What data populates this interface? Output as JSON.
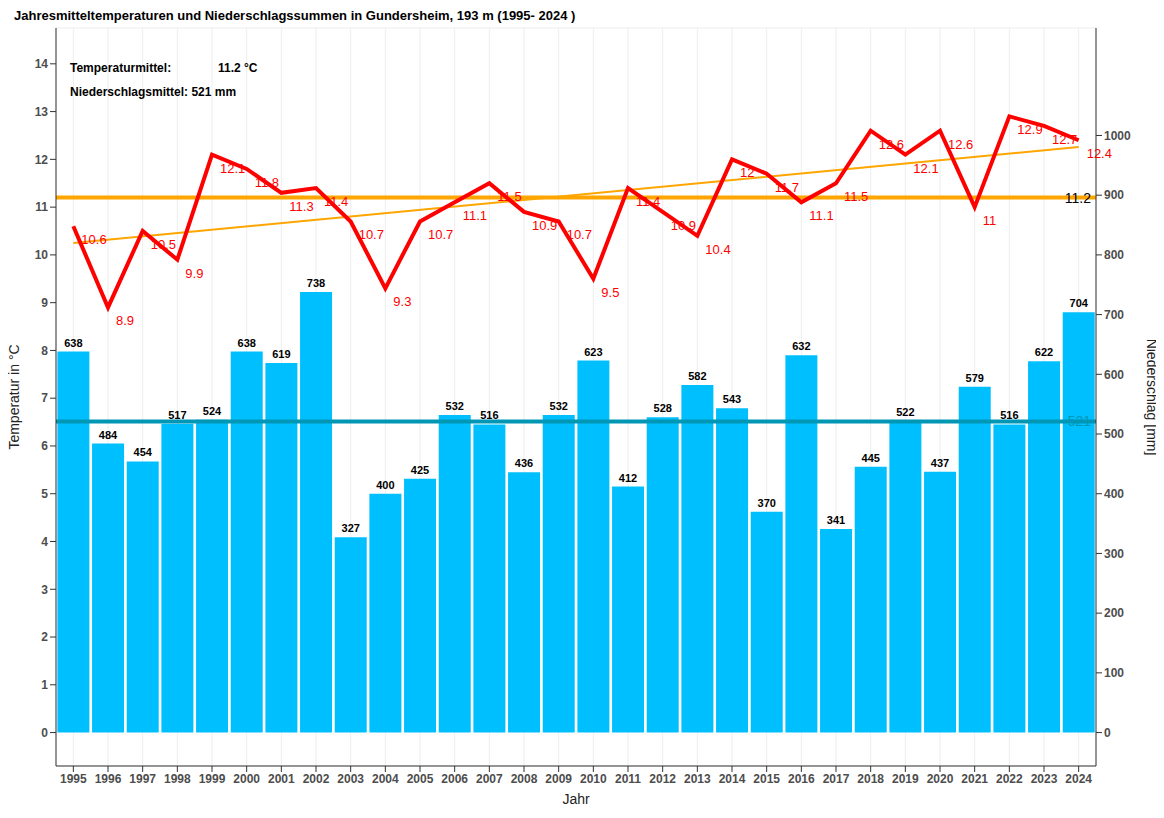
{
  "chart_data": {
    "type": "bar",
    "title": "Jahresmitteltemperaturen und Niederschlagssummen in Gundersheim, 193 m (1995- 2024 )",
    "x_label": "Jahr",
    "y_label": "Temperatur in °C",
    "y2_label": "Niederschlag [mm]",
    "x": [
      1995,
      1996,
      1997,
      1998,
      1999,
      2000,
      2001,
      2002,
      2003,
      2004,
      2005,
      2006,
      2007,
      2008,
      2009,
      2010,
      2011,
      2012,
      2013,
      2014,
      2015,
      2016,
      2017,
      2018,
      2019,
      2020,
      2021,
      2022,
      2023,
      2024
    ],
    "series": [
      {
        "type": "bar",
        "axis": "y2",
        "color": "#00bfff",
        "data_labels": true,
        "values": [
          638,
          484,
          454,
          517,
          524,
          638,
          619,
          738,
          327,
          400,
          425,
          532,
          516,
          436,
          532,
          623,
          412,
          528,
          582,
          543,
          370,
          632,
          341,
          445,
          522,
          437,
          579,
          516,
          622,
          704
        ]
      },
      {
        "type": "line",
        "axis": "y",
        "color": "#ff0000",
        "data_labels": true,
        "values": [
          10.6,
          8.9,
          10.5,
          9.9,
          12.1,
          11.8,
          11.3,
          11.4,
          10.7,
          9.3,
          10.7,
          11.1,
          11.5,
          10.9,
          10.7,
          9.5,
          11.4,
          10.9,
          10.4,
          12,
          11.7,
          11.1,
          11.5,
          12.6,
          12.1,
          12.6,
          11,
          12.9,
          12.7,
          12.4
        ]
      }
    ],
    "mean_lines": [
      {
        "axis": "y",
        "value": 11.2,
        "color": "#ffa500"
      },
      {
        "axis": "y2",
        "value": 521,
        "color": "#0096b4"
      }
    ],
    "trend_line": {
      "x": [
        1995,
        2024
      ],
      "values": [
        10.25,
        12.26
      ],
      "color": "#ffa500"
    },
    "annotations": [
      {
        "text": "Temperaturmittel:",
        "value": 11.2,
        "unit": "°C"
      },
      {
        "text": "Niederschlagsmittel:",
        "value": 521,
        "unit": "mm"
      }
    ],
    "ylim": [
      -0.7,
      14.75
    ],
    "yticks": [
      0,
      1,
      2,
      3,
      4,
      5,
      6,
      7,
      8,
      9,
      10,
      11,
      12,
      13,
      14
    ],
    "y2lim": [
      -56,
      1180
    ],
    "y2ticks": [
      0,
      100,
      200,
      300,
      400,
      500,
      600,
      700,
      800,
      900,
      1000
    ],
    "grid": true
  }
}
